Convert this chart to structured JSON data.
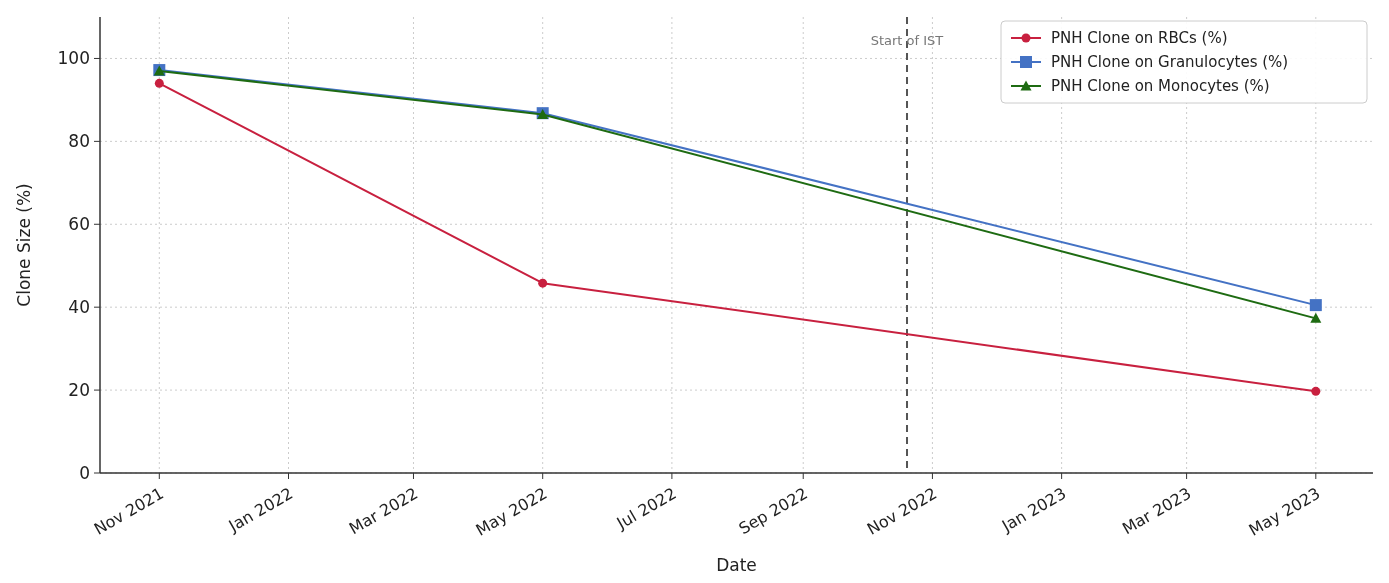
{
  "chart_data": {
    "type": "line",
    "xlabel": "Date",
    "ylabel": "Clone Size (%)",
    "x": [
      "2021-11-01",
      "2022-05-01",
      "2023-05-01"
    ],
    "series": [
      {
        "name": "PNH Clone on RBCs (%)",
        "color": "#c8203f",
        "marker": "circle",
        "values": [
          94,
          45.8,
          19.7
        ]
      },
      {
        "name": "PNH Clone on Granulocytes (%)",
        "color": "#4472c4",
        "marker": "square",
        "values": [
          97.2,
          86.8,
          40.5
        ]
      },
      {
        "name": "PNH Clone on Monocytes (%)",
        "color": "#1e6b12",
        "marker": "triangle",
        "values": [
          97,
          86.5,
          37.3
        ]
      }
    ],
    "xlim": [
      "2021-10-04",
      "2023-05-28"
    ],
    "xticks": [
      {
        "value": "2021-11-01",
        "label": "Nov 2021"
      },
      {
        "value": "2022-01-01",
        "label": "Jan 2022"
      },
      {
        "value": "2022-03-01",
        "label": "Mar 2022"
      },
      {
        "value": "2022-05-01",
        "label": "May 2022"
      },
      {
        "value": "2022-07-01",
        "label": "Jul 2022"
      },
      {
        "value": "2022-09-01",
        "label": "Sep 2022"
      },
      {
        "value": "2022-11-01",
        "label": "Nov 2022"
      },
      {
        "value": "2023-01-01",
        "label": "Jan 2023"
      },
      {
        "value": "2023-03-01",
        "label": "Mar 2023"
      },
      {
        "value": "2023-05-01",
        "label": "May 2023"
      }
    ],
    "ylim": [
      0,
      110
    ],
    "yticks": [
      0,
      20,
      40,
      60,
      80,
      100
    ],
    "ref_lines": [
      {
        "axis": "x",
        "value": "2022-10-20",
        "label": "Start of IST",
        "color": "#555555",
        "line_style": "dashed"
      }
    ],
    "grid": true,
    "legend": "top right",
    "line_style": "solid"
  }
}
